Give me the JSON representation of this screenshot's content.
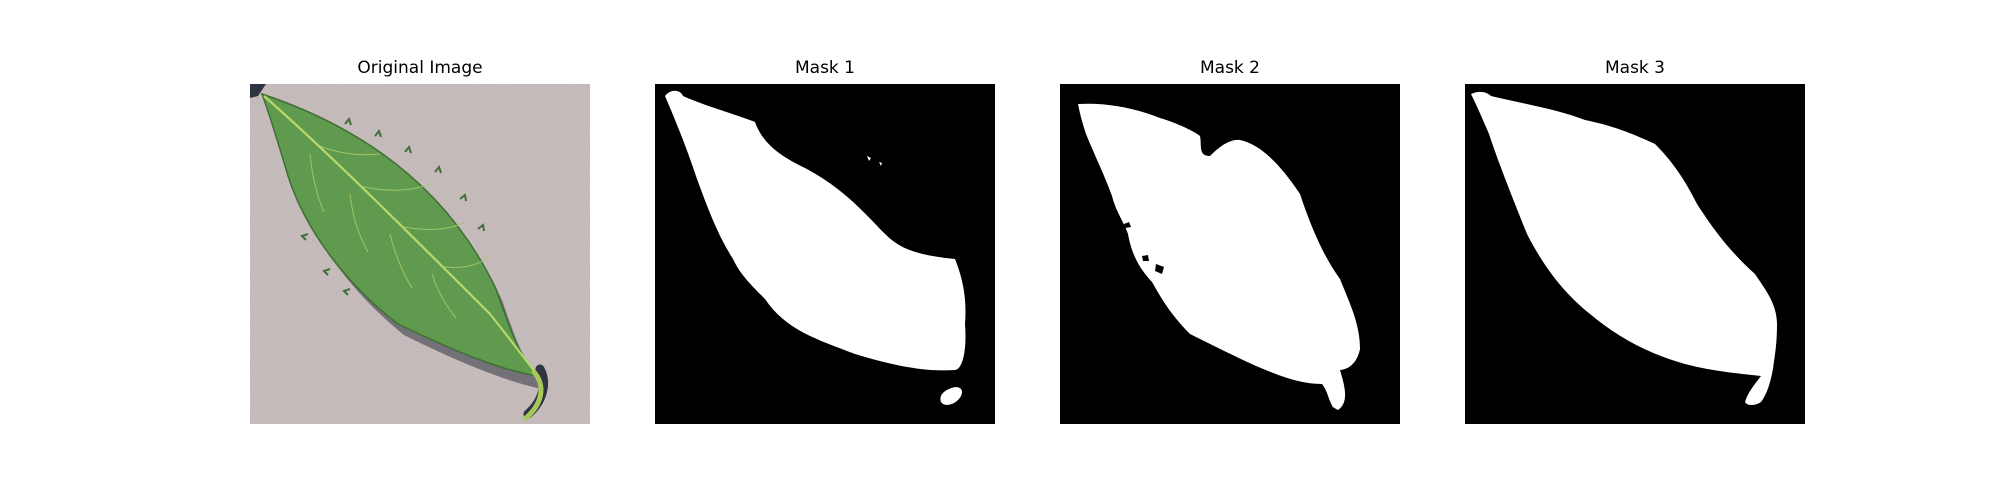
{
  "panels": [
    {
      "title": "Original Image"
    },
    {
      "title": "Mask 1"
    },
    {
      "title": "Mask 2"
    },
    {
      "title": "Mask 3"
    }
  ],
  "colors": {
    "background": "#ffffff",
    "mask_background": "#000000",
    "mask_foreground": "#ffffff",
    "leaf_green": "#5f9a4e",
    "leaf_vein": "#b9d86a",
    "surface": "#cdc2c2",
    "shadow": "#2f3440"
  },
  "icons": {
    "original": "leaf-photo",
    "masks": "segmentation-mask"
  }
}
